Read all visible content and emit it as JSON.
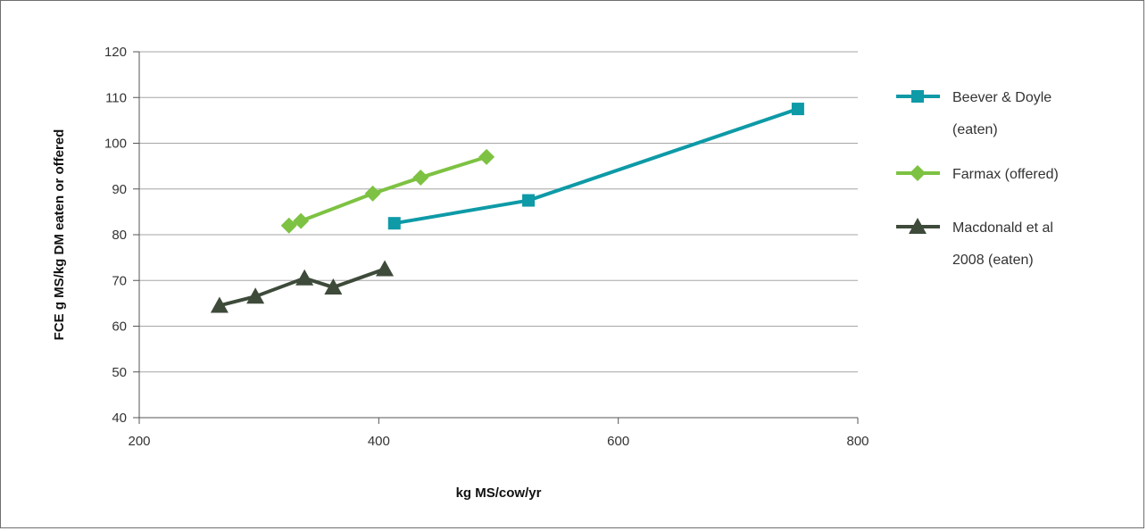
{
  "chart_data": {
    "type": "line",
    "title": "",
    "xlabel": "kg MS/cow/yr",
    "ylabel": "FCE g MS/kg DM eaten or offered",
    "xlim": [
      200,
      800
    ],
    "ylim": [
      40,
      120
    ],
    "xticks": [
      200,
      400,
      600,
      800
    ],
    "yticks": [
      40,
      50,
      60,
      70,
      80,
      90,
      100,
      110,
      120
    ],
    "grid": "horizontal",
    "legend_position": "right",
    "series": [
      {
        "name": "Beever & Doyle (eaten)",
        "legend_lines": [
          "Beever & Doyle",
          "(eaten)"
        ],
        "color": "#0e9aa7",
        "marker": "square",
        "x": [
          413,
          525,
          750
        ],
        "y": [
          82.5,
          87.5,
          107.5
        ]
      },
      {
        "name": "Farmax (offered)",
        "legend_lines": [
          "Farmax (offered)"
        ],
        "color": "#7dc242",
        "marker": "diamond",
        "x": [
          325,
          335,
          395,
          435,
          490
        ],
        "y": [
          82,
          83,
          89,
          92.5,
          97
        ]
      },
      {
        "name": "Macdonald et al 2008 (eaten)",
        "legend_lines": [
          "Macdonald et al",
          "2008 (eaten)"
        ],
        "color": "#3e4a3a",
        "marker": "triangle",
        "x": [
          267,
          297,
          338,
          362,
          405
        ],
        "y": [
          64.5,
          66.5,
          70.5,
          68.5,
          72.5
        ]
      }
    ]
  }
}
